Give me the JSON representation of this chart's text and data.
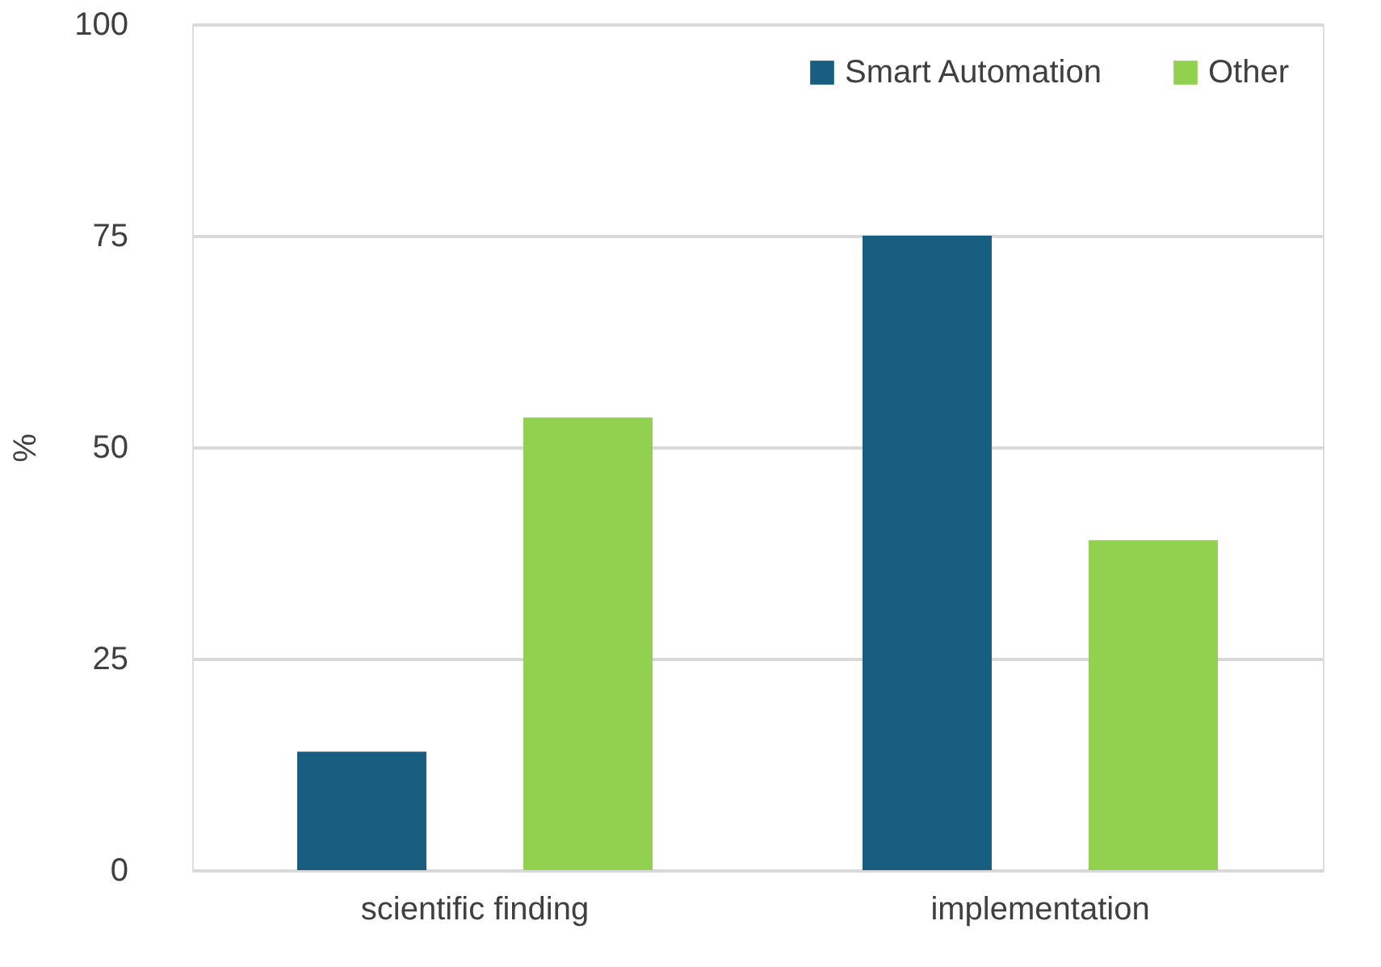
{
  "chart_data": {
    "type": "bar",
    "ylabel": "%",
    "categories": [
      "scientific finding",
      "implementation"
    ],
    "series": [
      {
        "name": "Smart Automation",
        "color": "#175e80",
        "values": [
          14,
          75
        ]
      },
      {
        "name": "Other",
        "color": "#92d050",
        "values": [
          53.5,
          39
        ]
      }
    ],
    "ylim": [
      0,
      100
    ],
    "yticks": [
      0,
      25,
      50,
      75,
      100
    ],
    "grid": "y",
    "legend": "top right"
  }
}
